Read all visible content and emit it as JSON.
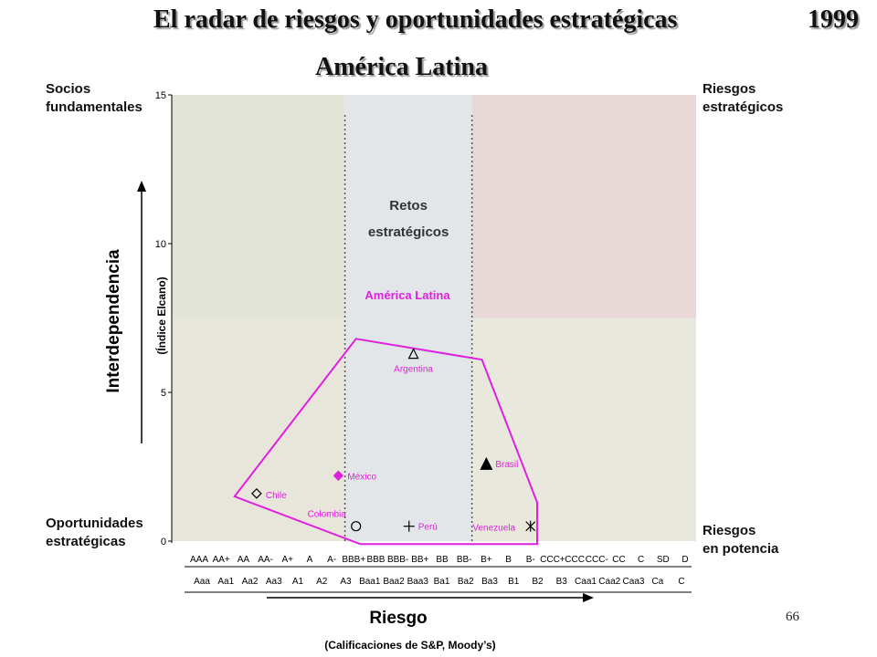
{
  "slide": {
    "title": "El radar de riesgos y oportunidades estratégicas",
    "year": "1999",
    "subtitle": "América Latina",
    "page_number": "66"
  },
  "quadrants": {
    "top_left": [
      "Socios",
      "fundamentales"
    ],
    "top_right": [
      "Riesgos",
      "estratégicos"
    ],
    "bottom_left": [
      "Oportunidades",
      "estratégicas"
    ],
    "bottom_right": [
      "Riesgos",
      "en potencia"
    ],
    "center": [
      "Retos",
      "estratégicos"
    ]
  },
  "colors": {
    "socios": "#e2e4d8",
    "retos": "#e2e6e8",
    "riesgos_estrategicos": "#e8d8d8",
    "oportunidades": "#e8e5db",
    "potencia": "#e8e8dc",
    "region": "#e020e0"
  },
  "chart_data": {
    "type": "scatter",
    "ylabel": "Interdependencia",
    "ylabel_sub": "(Índice Elcano)",
    "xlabel": "Riesgo",
    "xlabel_sub": "(Calificaciones de S&P, Moody’s)",
    "ylim": [
      0,
      15
    ],
    "yticks": [
      0,
      5,
      10,
      15
    ],
    "x_categories_sp": [
      "AAA",
      "AA+",
      "AA",
      "AA-",
      "A+",
      "A",
      "A-",
      "BBB+",
      "BBB",
      "BBB-",
      "BB+",
      "BB",
      "BB-",
      "B+",
      "B",
      "B-",
      "CCC+",
      "CCC",
      "CCC-",
      "CC",
      "C",
      "SD",
      "D"
    ],
    "x_categories_moodys": [
      "Aaa",
      "Aa1",
      "Aa2",
      "Aa3",
      "A1",
      "A2",
      "A3",
      "Baa1",
      "Baa2",
      "Baa3",
      "Ba1",
      "Ba2",
      "Ba3",
      "B1",
      "B2",
      "B3",
      "Caa1",
      "Caa2",
      "Caa3",
      "Ca",
      "C"
    ],
    "zones": {
      "retos_x": [
        "BBB+",
        "BB-"
      ],
      "interdependence_split": 7.5
    },
    "region": {
      "name": "América Latina",
      "polygon": [
        {
          "x": 1.6,
          "y": 1.5
        },
        {
          "x": 7.1,
          "y": 6.8
        },
        {
          "x": 12.8,
          "y": 6.1
        },
        {
          "x": 15.3,
          "y": 1.3
        },
        {
          "x": 15.3,
          "y": -0.1
        },
        {
          "x": 7.3,
          "y": -0.1
        }
      ]
    },
    "points": [
      {
        "name": "Argentina",
        "x": 9.7,
        "y": 6.3,
        "marker": "triangle-open"
      },
      {
        "name": "Brasil",
        "x": 13.0,
        "y": 2.6,
        "marker": "triangle-filled"
      },
      {
        "name": "México",
        "x": 6.3,
        "y": 2.2,
        "marker": "diamond-filled"
      },
      {
        "name": "Chile",
        "x": 2.6,
        "y": 1.6,
        "marker": "diamond-open"
      },
      {
        "name": "Colombia",
        "x": 7.1,
        "y": 0.5,
        "marker": "circle-open"
      },
      {
        "name": "Perú",
        "x": 9.5,
        "y": 0.5,
        "marker": "plus"
      },
      {
        "name": "Venezuela",
        "x": 15.0,
        "y": 0.5,
        "marker": "star"
      }
    ]
  }
}
